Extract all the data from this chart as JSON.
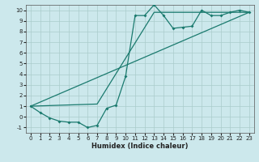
{
  "xlabel": "Humidex (Indice chaleur)",
  "background_color": "#cce8ec",
  "grid_color": "#aacccc",
  "line_color": "#1a7a6e",
  "xlim": [
    -0.5,
    23.5
  ],
  "ylim": [
    -1.5,
    10.5
  ],
  "xticks": [
    0,
    1,
    2,
    3,
    4,
    5,
    6,
    7,
    8,
    9,
    10,
    11,
    12,
    13,
    14,
    15,
    16,
    17,
    18,
    19,
    20,
    21,
    22,
    23
  ],
  "yticks": [
    -1,
    0,
    1,
    2,
    3,
    4,
    5,
    6,
    7,
    8,
    9,
    10
  ],
  "line1_x": [
    0,
    1,
    2,
    3,
    4,
    5,
    6,
    7,
    8,
    9,
    10,
    11,
    12,
    13,
    14,
    15,
    16,
    17,
    18,
    19,
    20,
    21,
    22,
    23
  ],
  "line1_y": [
    1,
    0.4,
    -0.1,
    -0.4,
    -0.5,
    -0.5,
    -1.0,
    -0.8,
    0.8,
    1.1,
    3.8,
    9.5,
    9.5,
    10.5,
    9.5,
    8.3,
    8.4,
    8.5,
    10.0,
    9.5,
    9.5,
    9.8,
    10.0,
    9.8
  ],
  "line2_x": [
    0,
    23
  ],
  "line2_y": [
    1,
    9.8
  ],
  "line3_x": [
    0,
    7,
    13,
    23
  ],
  "line3_y": [
    1,
    1.2,
    9.8,
    9.8
  ],
  "xlabel_fontsize": 6,
  "tick_fontsize": 5
}
